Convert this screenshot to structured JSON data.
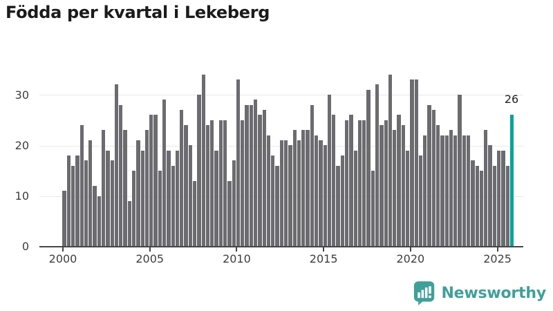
{
  "title": "Födda per kvartal i Lekeberg",
  "chart_data": {
    "type": "bar",
    "title": "Födda per kvartal i Lekeberg",
    "xlabel": "",
    "ylabel": "",
    "frequency": "quarterly",
    "start_year": 2000,
    "x_tick_labels": [
      "2000",
      "2005",
      "2010",
      "2015",
      "2020",
      "2025"
    ],
    "y_tick_labels": [
      "0",
      "10",
      "20",
      "30"
    ],
    "ylim": [
      0,
      35
    ],
    "grid": "horizontal",
    "legend": "none",
    "bar_color": "#6b6b70",
    "series": [
      {
        "name": "Födda per kvartal",
        "values": [
          11,
          18,
          16,
          18,
          24,
          17,
          21,
          12,
          10,
          23,
          19,
          17,
          32,
          28,
          23,
          9,
          15,
          21,
          19,
          23,
          26,
          26,
          15,
          29,
          19,
          16,
          19,
          27,
          24,
          20,
          13,
          30,
          34,
          24,
          25,
          19,
          25,
          25,
          13,
          17,
          33,
          25,
          28,
          28,
          29,
          26,
          27,
          22,
          18,
          16,
          21,
          21,
          20,
          23,
          21,
          23,
          23,
          28,
          22,
          21,
          20,
          30,
          26,
          16,
          18,
          25,
          26,
          19,
          25,
          25,
          31,
          15,
          32,
          24,
          25,
          34,
          23,
          26,
          24,
          19,
          33,
          33,
          18,
          22,
          28,
          27,
          24,
          22,
          22,
          23,
          22,
          30,
          22,
          22,
          17,
          16,
          15,
          23,
          20,
          16,
          19,
          19,
          16,
          26
        ]
      }
    ],
    "highlight": {
      "index": 103,
      "value": 26,
      "label": "26",
      "color": "#00a39c"
    }
  },
  "logo": {
    "text": "Newsworthy",
    "color": "#3fa099"
  }
}
